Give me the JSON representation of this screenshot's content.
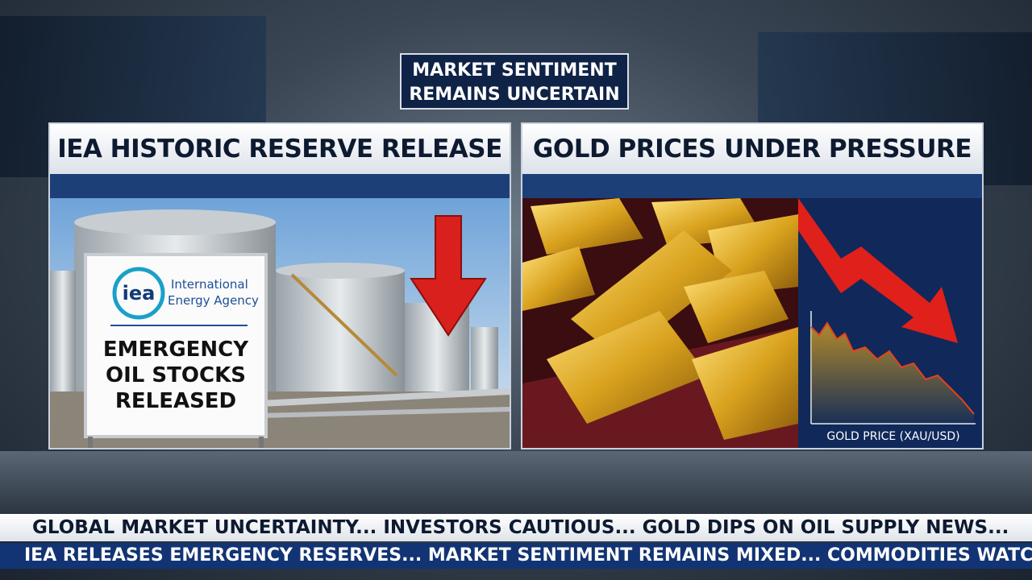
{
  "header": {
    "lines": [
      "MARKET SENTIMENT",
      "REMAINS UNCERTAIN"
    ]
  },
  "panels": [
    {
      "title": "IEA HISTORIC RESERVE RELEASE",
      "sign": {
        "logo": "iea",
        "org_lines": [
          "International",
          "Energy Agency"
        ],
        "message_lines": [
          "EMERGENCY",
          "OIL STOCKS",
          "RELEASED"
        ]
      }
    },
    {
      "title": "GOLD PRICES UNDER PRESSURE",
      "chart_label": "GOLD PRICE (XAU/USD)"
    }
  ],
  "ticker": [
    "GLOBAL MARKET UNCERTAINTY... INVESTORS CAUTIOUS... GOLD DIPS ON OIL SUPPLY NEWS...",
    "IEA RELEASES EMERGENCY RESERVES... MARKET SENTIMENT REMAINS MIXED... COMMODITIES WATCH..."
  ]
}
